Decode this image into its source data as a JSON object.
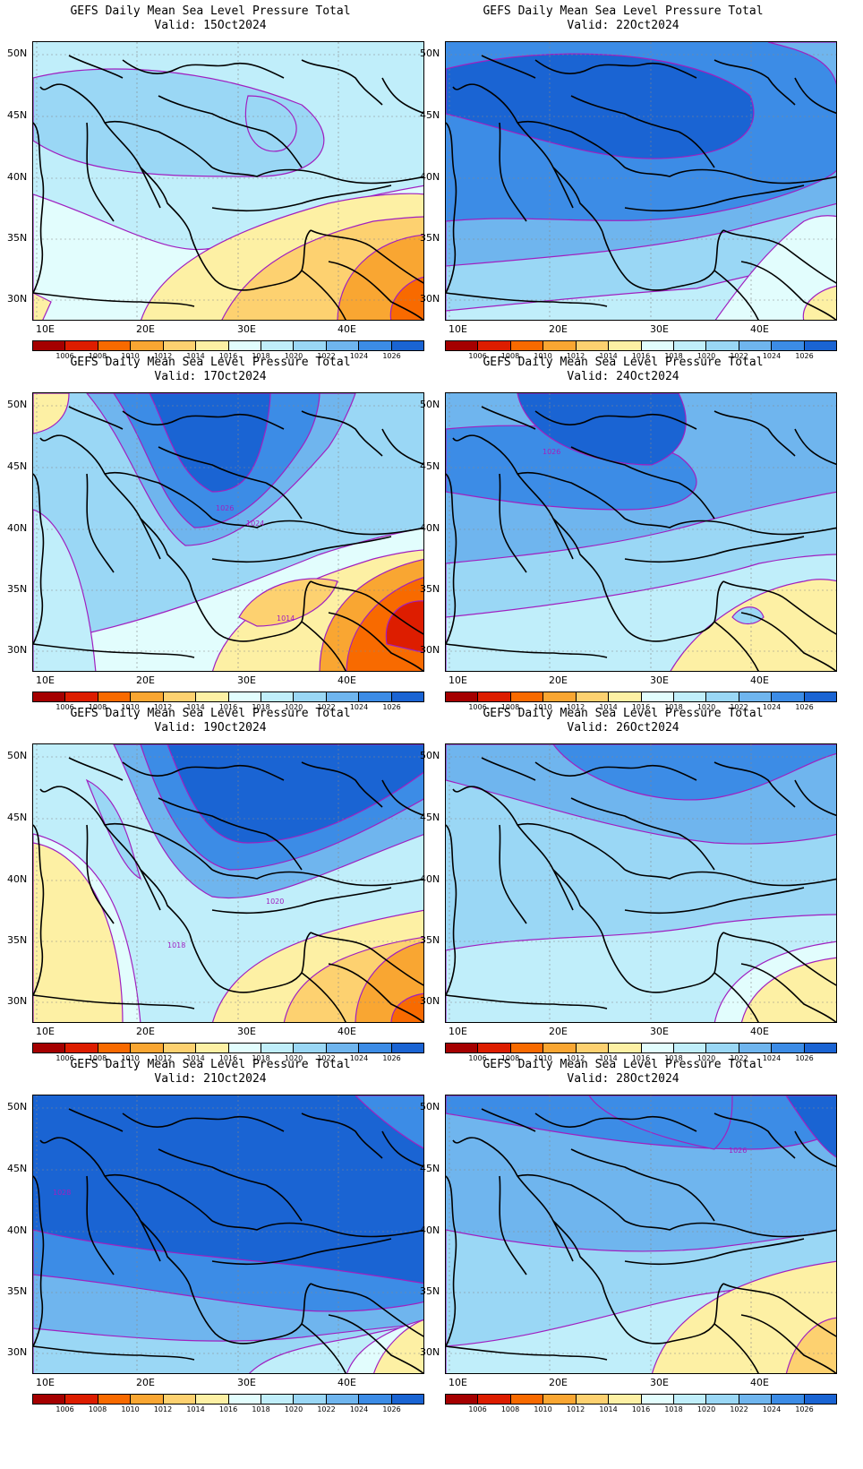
{
  "colorbar": {
    "colors": [
      "#a50000",
      "#dd1d00",
      "#f86a00",
      "#f9a632",
      "#fdd170",
      "#fdf0a4",
      "#e2fdfd",
      "#c0eefa",
      "#9ad7f5",
      "#6fb5ee",
      "#3c8ce6",
      "#1a64d3"
    ],
    "labels": [
      "1006",
      "1008",
      "1010",
      "1012",
      "1014",
      "1016",
      "1018",
      "1020",
      "1022",
      "1024",
      "1026"
    ]
  },
  "axes": {
    "lat_labels": [
      "50N",
      "45N",
      "40N",
      "35N",
      "30N"
    ],
    "lon_labels": [
      "10E",
      "20E",
      "30E",
      "40E"
    ]
  },
  "panels": [
    {
      "title": "GEFS Daily Mean Sea Level Pressure Total",
      "valid": "Valid: 15Oct2024",
      "contour_labels": []
    },
    {
      "title": "GEFS Daily Mean Sea Level Pressure Total",
      "valid": "Valid: 22Oct2024",
      "contour_labels": []
    },
    {
      "title": "GEFS Daily Mean Sea Level Pressure Total",
      "valid": "Valid: 17Oct2024",
      "contour_labels": [
        "1026",
        "1024",
        "1014"
      ]
    },
    {
      "title": "GEFS Daily Mean Sea Level Pressure Total",
      "valid": "Valid: 24Oct2024",
      "contour_labels": [
        "1026"
      ]
    },
    {
      "title": "GEFS Daily Mean Sea Level Pressure Total",
      "valid": "Valid: 19Oct2024",
      "contour_labels": [
        "1020",
        "1018"
      ]
    },
    {
      "title": "GEFS Daily Mean Sea Level Pressure Total",
      "valid": "Valid: 26Oct2024",
      "contour_labels": []
    },
    {
      "title": "GEFS Daily Mean Sea Level Pressure Total",
      "valid": "Valid: 21Oct2024",
      "contour_labels": [
        "1028"
      ]
    },
    {
      "title": "GEFS Daily Mean Sea Level Pressure Total",
      "valid": "Valid: 28Oct2024",
      "contour_labels": [
        "1026"
      ]
    }
  ]
}
